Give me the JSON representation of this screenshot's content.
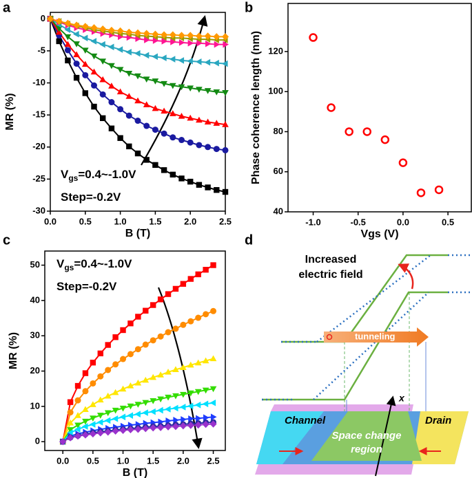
{
  "chart_data": [
    {
      "type": "scatter",
      "label": "a",
      "xlabel": "B (T)",
      "ylabel": "MR (%)",
      "xlim": [
        0,
        2.5
      ],
      "ylim": [
        -30,
        1
      ],
      "xticks": [
        {
          "value": 0,
          "label": "0.0"
        },
        0.5,
        {
          "value": 1,
          "label": "1.0"
        },
        1.5,
        {
          "value": 2,
          "label": "2.0"
        },
        2.5
      ],
      "yticks": [
        -30,
        -25,
        -20,
        -15,
        -10,
        -5,
        0
      ],
      "fit_lines": true,
      "annotations": [
        {
          "text": "V",
          "subscript": "gs",
          "suffix": "=0.4~-1.0V"
        },
        {
          "text": "Step=-0.2V"
        }
      ],
      "x": [
        0,
        0.125,
        0.25,
        0.375,
        0.5,
        0.625,
        0.75,
        0.875,
        1,
        1.125,
        1.25,
        1.375,
        1.5,
        1.625,
        1.75,
        1.875,
        2,
        2.125,
        2.25,
        2.375,
        2.5
      ],
      "series": [
        {
          "color": "#000000",
          "marker": "square",
          "values": [
            0,
            -3.5,
            -6.5,
            -9.2,
            -11.6,
            -13.7,
            -15.5,
            -17.1,
            -18.6,
            -19.9,
            -21,
            -22,
            -22.8,
            -23.6,
            -24.3,
            -24.9,
            -25.4,
            -25.9,
            -26.3,
            -26.7,
            -27
          ]
        },
        {
          "color": "#1a1aa0",
          "marker": "circle",
          "values": [
            0,
            -2.6,
            -4.9,
            -7,
            -8.8,
            -10.4,
            -11.8,
            -13,
            -14.1,
            -15.1,
            -15.9,
            -16.7,
            -17.3,
            -17.9,
            -18.5,
            -18.9,
            -19.3,
            -19.7,
            -20,
            -20.3,
            -20.5
          ]
        },
        {
          "color": "#ff0000",
          "marker": "triangle-up",
          "values": [
            0,
            -2.1,
            -4,
            -5.6,
            -7.1,
            -8.3,
            -9.5,
            -10.5,
            -11.4,
            -12.1,
            -12.8,
            -13.4,
            -14,
            -14.4,
            -14.8,
            -15.2,
            -15.5,
            -15.8,
            -16.1,
            -16.3,
            -16.5
          ]
        },
        {
          "color": "#138a13",
          "marker": "triangle-down",
          "values": [
            0,
            -1.5,
            -2.8,
            -3.9,
            -4.9,
            -5.8,
            -6.6,
            -7.3,
            -7.9,
            -8.5,
            -8.9,
            -9.4,
            -9.7,
            -10.1,
            -10.4,
            -10.6,
            -10.8,
            -11,
            -11.2,
            -11.4,
            -11.5
          ]
        },
        {
          "color": "#2aa7c0",
          "marker": "triangle-left",
          "values": [
            0,
            -0.9,
            -1.7,
            -2.4,
            -3,
            -3.5,
            -4,
            -4.4,
            -4.8,
            -5.2,
            -5.4,
            -5.7,
            -5.9,
            -6.1,
            -6.3,
            -6.5,
            -6.6,
            -6.7,
            -6.8,
            -6.9,
            -7
          ]
        },
        {
          "color": "#ff1493",
          "marker": "triangle-right",
          "values": [
            0,
            -0.5,
            -1,
            -1.4,
            -1.7,
            -2,
            -2.3,
            -2.5,
            -2.8,
            -2.9,
            -3.1,
            -3.3,
            -3.4,
            -3.5,
            -3.6,
            -3.7,
            -3.8,
            -3.8,
            -3.9,
            -4,
            -4
          ]
        },
        {
          "color": "#9a9a00",
          "marker": "triangle-left",
          "values": [
            0,
            -0.4,
            -0.8,
            -1.1,
            -1.4,
            -1.7,
            -1.9,
            -2.1,
            -2.3,
            -2.4,
            -2.6,
            -2.7,
            -2.8,
            -2.9,
            -3,
            -3,
            -3.1,
            -3.2,
            -3.2,
            -3.3,
            -3.3
          ]
        },
        {
          "color": "#ff9900",
          "marker": "diamond",
          "values": [
            0,
            -0.4,
            -0.7,
            -1,
            -1.2,
            -1.4,
            -1.6,
            -1.8,
            -1.9,
            -2.1,
            -2.2,
            -2.3,
            -2.4,
            -2.5,
            -2.5,
            -2.6,
            -2.6,
            -2.7,
            -2.7,
            -2.8,
            -2.8
          ]
        }
      ]
    },
    {
      "type": "scatter",
      "label": "b",
      "xlabel": "Vgs (V)",
      "ylabel": "Phase coherence length (nm)",
      "xlim": [
        -1.28,
        0.76
      ],
      "ylim": [
        40,
        144
      ],
      "xticks": [
        {
          "value": -1,
          "label": "-1.0"
        },
        -0.5,
        {
          "value": 0,
          "label": "0.0"
        },
        0.5
      ],
      "yticks": [
        40,
        60,
        80,
        100,
        120
      ],
      "fit_lines": false,
      "x": [
        -1,
        -0.8,
        -0.6,
        -0.4,
        -0.2,
        0,
        0.2,
        0.4
      ],
      "series": [
        {
          "color": "#ff0000",
          "marker": "open-circle",
          "values": [
            127,
            92,
            80,
            80,
            76,
            64.5,
            49.5,
            51
          ]
        }
      ]
    },
    {
      "type": "scatter",
      "label": "c",
      "xlabel": "B (T)",
      "ylabel": "MR (%)",
      "xlim": [
        -0.3,
        2.7
      ],
      "ylim": [
        -2.5,
        54
      ],
      "xticks": [
        {
          "value": 0,
          "label": "0.0"
        },
        0.5,
        {
          "value": 1,
          "label": "1.0"
        },
        1.5,
        {
          "value": 2,
          "label": "2.0"
        },
        2.5
      ],
      "yticks": [
        0,
        10,
        20,
        30,
        40,
        50
      ],
      "fit_lines": true,
      "annotations": [
        {
          "text": "V",
          "subscript": "gs",
          "suffix": "=0.4~-1.0V"
        },
        {
          "text": "Step=-0.2V"
        }
      ],
      "x": [
        0,
        0.125,
        0.25,
        0.375,
        0.5,
        0.625,
        0.75,
        0.875,
        1,
        1.125,
        1.25,
        1.375,
        1.5,
        1.625,
        1.75,
        1.875,
        2,
        2.125,
        2.25,
        2.375,
        2.5
      ],
      "series": [
        {
          "color": "#ff0000",
          "marker": "square",
          "values": [
            0,
            11.2,
            15.8,
            19.4,
            22.4,
            25,
            27.4,
            29.6,
            31.6,
            33.5,
            35.4,
            37.1,
            38.7,
            40.3,
            41.8,
            43.3,
            44.7,
            46.1,
            47.4,
            48.7,
            50
          ]
        },
        {
          "color": "#ff8c00",
          "marker": "circle",
          "values": [
            0,
            8.3,
            11.7,
            14.3,
            16.5,
            18.5,
            20.3,
            21.9,
            23.4,
            24.8,
            26.2,
            27.5,
            28.7,
            29.8,
            31,
            32,
            33.1,
            34.1,
            35.1,
            36.1,
            37
          ]
        },
        {
          "color": "#ffe600",
          "marker": "triangle-up",
          "values": [
            0,
            5.3,
            7.4,
            9.1,
            10.5,
            11.8,
            12.9,
            13.9,
            14.9,
            15.8,
            16.6,
            17.4,
            18.2,
            18.9,
            19.7,
            20.4,
            21,
            21.7,
            22.3,
            22.9,
            23.5
          ]
        },
        {
          "color": "#33dd00",
          "marker": "triangle-down",
          "values": [
            0,
            3.4,
            4.7,
            5.8,
            6.7,
            7.5,
            8.2,
            8.9,
            9.5,
            10.1,
            10.6,
            11.1,
            11.6,
            12.1,
            12.6,
            13,
            13.4,
            13.8,
            14.2,
            14.6,
            15
          ]
        },
        {
          "color": "#00e0ff",
          "marker": "triangle-left",
          "values": [
            0,
            2.5,
            3.5,
            4.3,
            4.9,
            5.5,
            6,
            6.5,
            7,
            7.4,
            7.8,
            8.2,
            8.5,
            8.9,
            9.2,
            9.5,
            9.8,
            10.1,
            10.4,
            10.7,
            11
          ]
        },
        {
          "color": "#1e3cff",
          "marker": "triangle-right",
          "values": [
            0,
            1.6,
            2.2,
            2.7,
            3.1,
            3.5,
            3.8,
            4.1,
            4.4,
            4.7,
            4.9,
            5.2,
            5.4,
            5.6,
            5.9,
            6.1,
            6.3,
            6.5,
            6.6,
            6.8,
            7
          ]
        },
        {
          "color": "#2a2aa0",
          "marker": "circle",
          "values": [
            0,
            1.2,
            1.7,
            2.1,
            2.5,
            2.8,
            3,
            3.3,
            3.5,
            3.7,
            3.9,
            4.1,
            4.3,
            4.4,
            4.6,
            4.8,
            4.9,
            5.1,
            5.2,
            5.4,
            5.5
          ]
        },
        {
          "color": "#9932cc",
          "marker": "diamond",
          "values": [
            0,
            1.1,
            1.6,
            1.9,
            2.2,
            2.5,
            2.7,
            3,
            3.2,
            3.4,
            3.5,
            3.7,
            3.9,
            4,
            4.2,
            4.3,
            4.5,
            4.6,
            4.7,
            4.9,
            5
          ]
        }
      ]
    }
  ],
  "diagram": {
    "label": "d",
    "annotation": [
      "Increased",
      "electric field"
    ],
    "band_label": "tunneling",
    "regions": [
      "Channel",
      "Drain"
    ],
    "center_region": [
      "Space change",
      "region"
    ],
    "axis_label": "x"
  }
}
